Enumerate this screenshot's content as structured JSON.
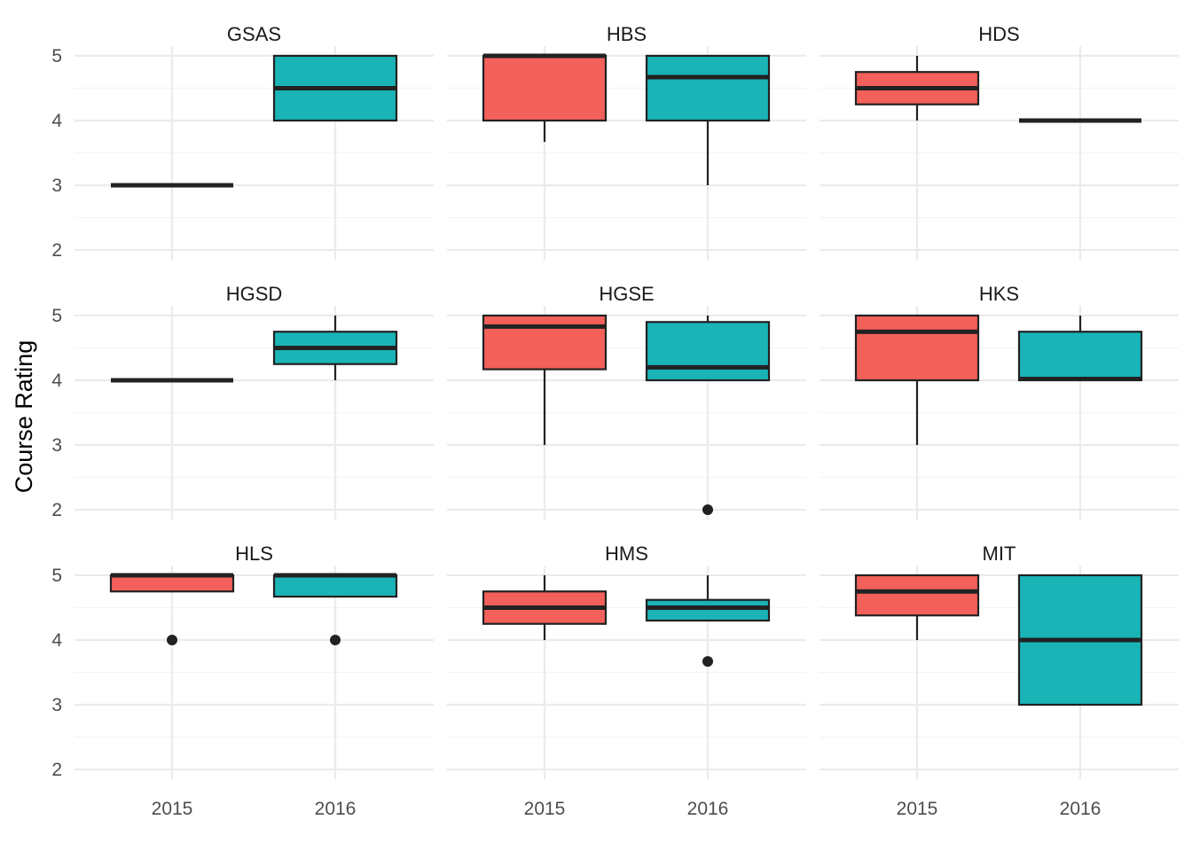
{
  "chart_data": {
    "type": "boxplot-facet",
    "ylabel": "Course Rating",
    "xlabel": "",
    "ylim": [
      1.85,
      5.15
    ],
    "yticks": [
      2,
      3,
      4,
      5
    ],
    "categories": [
      "2015",
      "2016"
    ],
    "colors": {
      "2015": "#f4605a",
      "2016": "#1ab3b6"
    },
    "legend": "none",
    "grid": true,
    "panels": [
      {
        "title": "GSAS",
        "boxes": [
          {
            "category": "2015",
            "ymin": 3,
            "q1": 3,
            "median": 3,
            "q3": 3,
            "ymax": 3,
            "outliers": []
          },
          {
            "category": "2016",
            "ymin": 4,
            "q1": 4,
            "median": 4.5,
            "q3": 5,
            "ymax": 5,
            "outliers": []
          }
        ]
      },
      {
        "title": "HBS",
        "boxes": [
          {
            "category": "2015",
            "ymin": 3.67,
            "q1": 4,
            "median": 5,
            "q3": 5,
            "ymax": 5,
            "outliers": []
          },
          {
            "category": "2016",
            "ymin": 3,
            "q1": 4,
            "median": 4.67,
            "q3": 5,
            "ymax": 5,
            "outliers": []
          }
        ]
      },
      {
        "title": "HDS",
        "boxes": [
          {
            "category": "2015",
            "ymin": 4,
            "q1": 4.25,
            "median": 4.5,
            "q3": 4.75,
            "ymax": 5,
            "outliers": []
          },
          {
            "category": "2016",
            "ymin": 4,
            "q1": 4,
            "median": 4,
            "q3": 4,
            "ymax": 4,
            "outliers": []
          }
        ]
      },
      {
        "title": "HGSD",
        "boxes": [
          {
            "category": "2015",
            "ymin": 4,
            "q1": 4,
            "median": 4,
            "q3": 4,
            "ymax": 4,
            "outliers": []
          },
          {
            "category": "2016",
            "ymin": 4,
            "q1": 4.25,
            "median": 4.5,
            "q3": 4.75,
            "ymax": 5,
            "outliers": []
          }
        ]
      },
      {
        "title": "HGSE",
        "boxes": [
          {
            "category": "2015",
            "ymin": 3,
            "q1": 4.17,
            "median": 4.83,
            "q3": 5,
            "ymax": 5,
            "outliers": []
          },
          {
            "category": "2016",
            "ymin": 4,
            "q1": 4,
            "median": 4.2,
            "q3": 4.9,
            "ymax": 5,
            "outliers": [
              2
            ]
          }
        ]
      },
      {
        "title": "HKS",
        "boxes": [
          {
            "category": "2015",
            "ymin": 3,
            "q1": 4,
            "median": 4.75,
            "q3": 5,
            "ymax": 5,
            "outliers": []
          },
          {
            "category": "2016",
            "ymin": 4,
            "q1": 4,
            "median": 4.02,
            "q3": 4.75,
            "ymax": 5,
            "outliers": []
          }
        ]
      },
      {
        "title": "HLS",
        "boxes": [
          {
            "category": "2015",
            "ymin": 4.75,
            "q1": 4.75,
            "median": 5,
            "q3": 5,
            "ymax": 5,
            "outliers": [
              4
            ]
          },
          {
            "category": "2016",
            "ymin": 4.67,
            "q1": 4.67,
            "median": 5,
            "q3": 5,
            "ymax": 5,
            "outliers": [
              4
            ]
          }
        ]
      },
      {
        "title": "HMS",
        "boxes": [
          {
            "category": "2015",
            "ymin": 4,
            "q1": 4.25,
            "median": 4.5,
            "q3": 4.75,
            "ymax": 5,
            "outliers": []
          },
          {
            "category": "2016",
            "ymin": 4.3,
            "q1": 4.3,
            "median": 4.5,
            "q3": 4.62,
            "ymax": 5,
            "outliers": [
              3.67
            ]
          }
        ]
      },
      {
        "title": "MIT",
        "boxes": [
          {
            "category": "2015",
            "ymin": 4,
            "q1": 4.38,
            "median": 4.75,
            "q3": 5,
            "ymax": 5,
            "outliers": []
          },
          {
            "category": "2016",
            "ymin": 3,
            "q1": 3,
            "median": 4,
            "q3": 5,
            "ymax": 5,
            "outliers": []
          }
        ]
      }
    ]
  }
}
